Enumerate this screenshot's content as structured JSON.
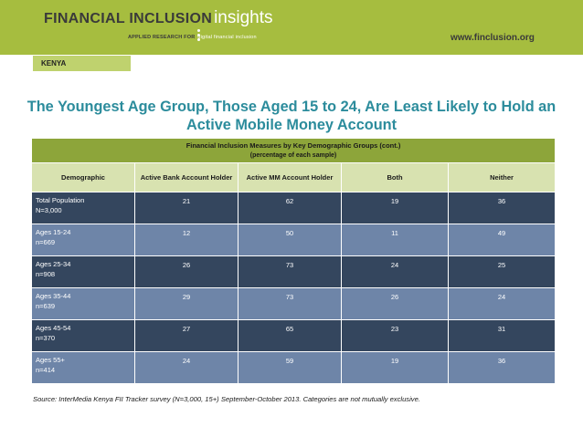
{
  "header": {
    "brand_main": "FINANCIAL INCLUSION",
    "brand_insights": "insights",
    "tagline_bold": "APPLIED RESEARCH FOR",
    "tagline_light": "digital financial inclusion",
    "website": "www.finclusion.org",
    "country": "KENYA",
    "colors": {
      "banner": "#a6bd3f",
      "tab": "#bfd26e"
    }
  },
  "title": "The Youngest Age Group, Those Aged 15 to 24, Are Least Likely to Hold an Active Mobile Money Account",
  "table": {
    "caption": "Financial Inclusion Measures by Key Demographic Groups (cont.)",
    "subcaption": "(percentage of each sample)",
    "columns": [
      "Demographic",
      "Active Bank Account Holder",
      "Active MM Account Holder",
      "Both",
      "Neither"
    ],
    "rows": [
      {
        "group": "Total Population",
        "n": "N=3,000",
        "bank": "21",
        "mm": "62",
        "both": "19",
        "neither": "36"
      },
      {
        "group": "Ages 15-24",
        "n": "n=669",
        "bank": "12",
        "mm": "50",
        "both": "11",
        "neither": "49"
      },
      {
        "group": "Ages 25-34",
        "n": "n=908",
        "bank": "26",
        "mm": "73",
        "both": "24",
        "neither": "25"
      },
      {
        "group": "Ages 35-44",
        "n": "n=639",
        "bank": "29",
        "mm": "73",
        "both": "26",
        "neither": "24"
      },
      {
        "group": "Ages 45-54",
        "n": "n=370",
        "bank": "27",
        "mm": "65",
        "both": "23",
        "neither": "31"
      },
      {
        "group": "Ages 55+",
        "n": "n=414",
        "bank": "24",
        "mm": "59",
        "both": "19",
        "neither": "36"
      }
    ],
    "colors": {
      "caption": "#8da53a",
      "header": "#d8e2b0",
      "row_dark": "#34465e",
      "row_light": "#6e85a8",
      "title": "#2c8c9c"
    }
  },
  "source": "Source: InterMedia Kenya FII Tracker survey (N=3,000, 15+) September-October 2013. Categories are not mutually exclusive."
}
